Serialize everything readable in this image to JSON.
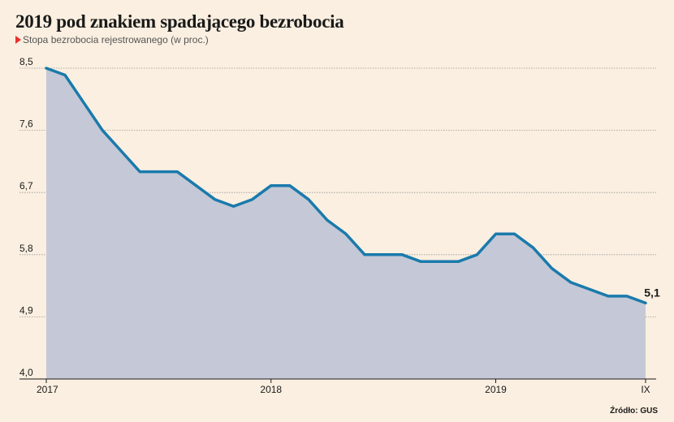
{
  "header": {
    "title": "2019 pod znakiem spadającego bezrobocia",
    "subtitle": "Stopa bezrobocia rejestrowanego (w proc.)",
    "source": "Źródło: GUS"
  },
  "colors": {
    "line": "#1a7aac",
    "area": "#c5c8d6",
    "grid": "#999999",
    "marker": "#e8312f"
  },
  "chart_data": {
    "type": "area",
    "title": "2019 pod znakiem spadającego bezrobocia",
    "subtitle": "Stopa bezrobocia rejestrowanego (w proc.)",
    "xlabel": "",
    "ylabel": "",
    "ylim": [
      4.0,
      8.5
    ],
    "yticks": [
      "8,5",
      "7,6",
      "6,7",
      "5,8",
      "4,9",
      "4,0"
    ],
    "ytick_values": [
      8.5,
      7.6,
      6.7,
      5.8,
      4.9,
      4.0
    ],
    "xticks": [
      {
        "index": 0,
        "label": "2017"
      },
      {
        "index": 12,
        "label": "2018"
      },
      {
        "index": 24,
        "label": "2019"
      },
      {
        "index": 32,
        "label": "IX"
      }
    ],
    "grid": true,
    "series": [
      {
        "values": [
          8.5,
          8.4,
          8.0,
          7.6,
          7.3,
          7.0,
          7.0,
          7.0,
          6.8,
          6.6,
          6.5,
          6.6,
          6.8,
          6.8,
          6.6,
          6.3,
          6.1,
          5.8,
          5.8,
          5.8,
          5.7,
          5.7,
          5.7,
          5.8,
          6.1,
          6.1,
          5.9,
          5.6,
          5.4,
          5.3,
          5.2,
          5.2,
          5.1
        ]
      }
    ],
    "end_label": "5,1"
  }
}
